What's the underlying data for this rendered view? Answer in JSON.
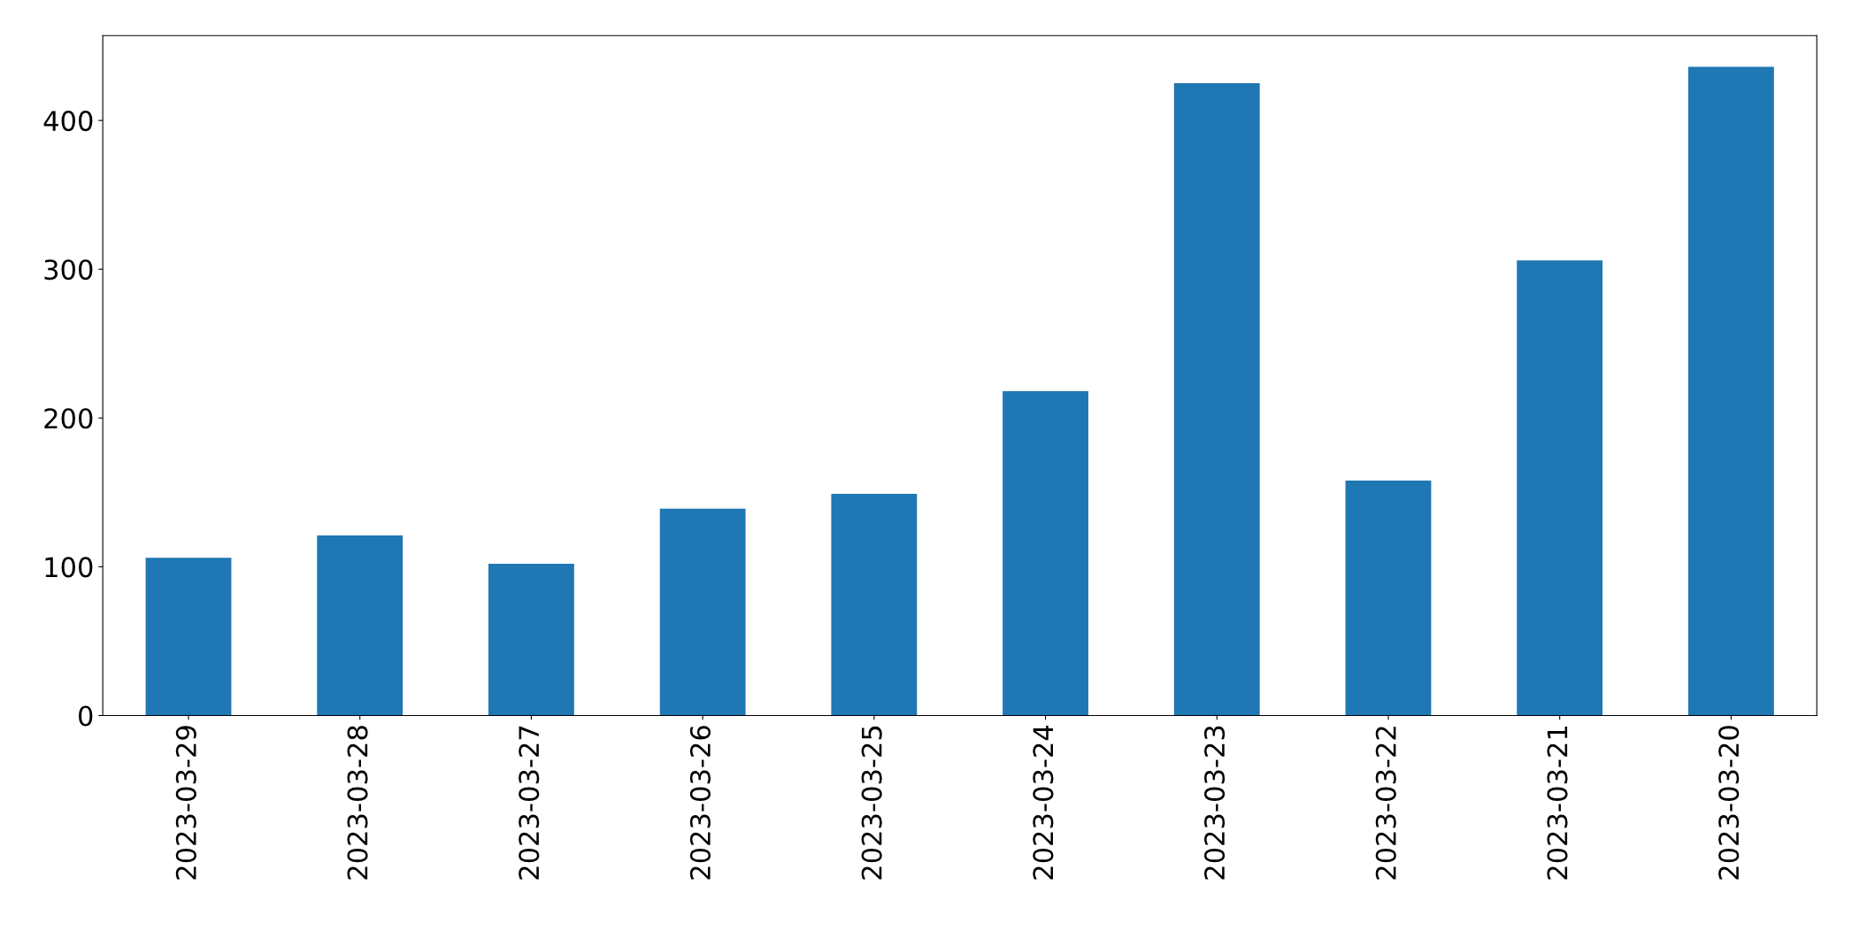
{
  "chart_data": {
    "type": "bar",
    "categories": [
      "2023-03-29",
      "2023-03-28",
      "2023-03-27",
      "2023-03-26",
      "2023-03-25",
      "2023-03-24",
      "2023-03-23",
      "2023-03-22",
      "2023-03-21",
      "2023-03-20"
    ],
    "values": [
      106,
      121,
      102,
      139,
      149,
      218,
      425,
      158,
      306,
      436
    ],
    "color": "#1f77b4",
    "ylim": [
      0,
      457
    ],
    "yticks": [
      0,
      100,
      200,
      300,
      400
    ],
    "grid": false,
    "legend": false
  }
}
